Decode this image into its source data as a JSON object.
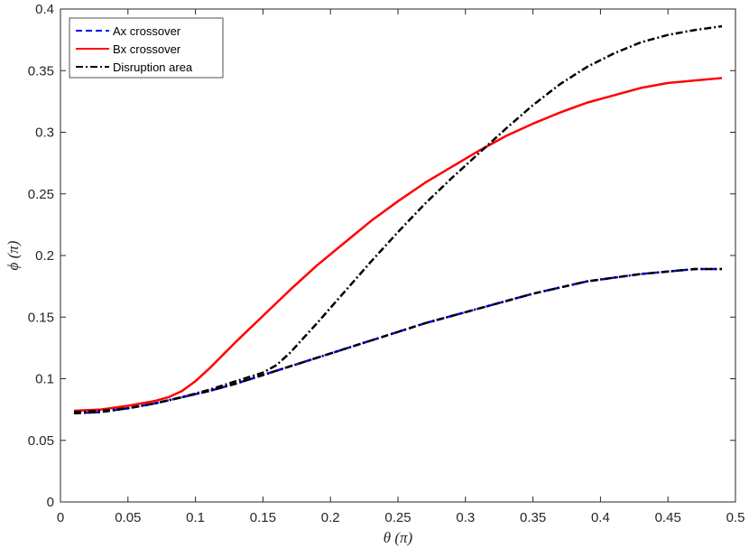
{
  "chart_data": {
    "type": "line",
    "xlabel": "θ (π)",
    "ylabel": "ϕ (π)",
    "xlim": [
      0,
      0.5
    ],
    "ylim": [
      0,
      0.4
    ],
    "xticks": [
      0,
      0.05,
      0.1,
      0.15,
      0.2,
      0.25,
      0.3,
      0.35,
      0.4,
      0.45,
      0.5
    ],
    "yticks": [
      0,
      0.05,
      0.1,
      0.15,
      0.2,
      0.25,
      0.3,
      0.35,
      0.4
    ],
    "xtick_labels": [
      "0",
      "0.05",
      "0.1",
      "0.15",
      "0.2",
      "0.25",
      "0.3",
      "0.35",
      "0.4",
      "0.45",
      "0.5"
    ],
    "ytick_labels": [
      "0",
      "0.05",
      "0.1",
      "0.15",
      "0.2",
      "0.25",
      "0.3",
      "0.35",
      "0.4"
    ],
    "grid": false,
    "legend_position": "top-left",
    "series": [
      {
        "name": "Ax crossover",
        "color": "#0000ff",
        "style": "dashed",
        "x": [
          0.01,
          0.03,
          0.05,
          0.07,
          0.09,
          0.11,
          0.13,
          0.15,
          0.17,
          0.19,
          0.21,
          0.23,
          0.25,
          0.27,
          0.29,
          0.31,
          0.33,
          0.35,
          0.37,
          0.39,
          0.41,
          0.43,
          0.45,
          0.47,
          0.49
        ],
        "y": [
          0.072,
          0.073,
          0.076,
          0.08,
          0.085,
          0.09,
          0.096,
          0.103,
          0.11,
          0.117,
          0.124,
          0.131,
          0.138,
          0.145,
          0.151,
          0.157,
          0.163,
          0.169,
          0.174,
          0.179,
          0.182,
          0.185,
          0.187,
          0.189,
          0.189
        ]
      },
      {
        "name": "Bx crossover",
        "color": "#ff0000",
        "style": "solid",
        "x": [
          0.01,
          0.03,
          0.05,
          0.07,
          0.08,
          0.09,
          0.1,
          0.11,
          0.13,
          0.15,
          0.17,
          0.19,
          0.21,
          0.23,
          0.25,
          0.27,
          0.29,
          0.31,
          0.33,
          0.35,
          0.37,
          0.39,
          0.41,
          0.43,
          0.45,
          0.47,
          0.49
        ],
        "y": [
          0.074,
          0.075,
          0.078,
          0.082,
          0.085,
          0.09,
          0.098,
          0.108,
          0.13,
          0.151,
          0.172,
          0.192,
          0.21,
          0.228,
          0.244,
          0.259,
          0.272,
          0.285,
          0.297,
          0.307,
          0.316,
          0.324,
          0.33,
          0.336,
          0.34,
          0.342,
          0.344
        ]
      },
      {
        "name": "Disruption area",
        "color": "#000000",
        "style": "dashdot",
        "segments": [
          {
            "x": [
              0.01,
              0.03,
              0.05,
              0.07,
              0.09,
              0.11,
              0.13,
              0.15,
              0.17,
              0.19,
              0.21,
              0.23,
              0.25,
              0.27,
              0.29,
              0.31,
              0.33,
              0.35,
              0.37,
              0.39,
              0.41,
              0.43,
              0.45,
              0.47,
              0.49
            ],
            "y": [
              0.072,
              0.073,
              0.076,
              0.08,
              0.085,
              0.09,
              0.096,
              0.103,
              0.11,
              0.117,
              0.124,
              0.131,
              0.138,
              0.145,
              0.151,
              0.157,
              0.163,
              0.169,
              0.174,
              0.179,
              0.182,
              0.185,
              0.187,
              0.189,
              0.189
            ]
          },
          {
            "x": [
              0.01,
              0.03,
              0.05,
              0.07,
              0.09,
              0.11,
              0.13,
              0.15,
              0.16,
              0.17,
              0.19,
              0.21,
              0.23,
              0.25,
              0.27,
              0.29,
              0.31,
              0.33,
              0.35,
              0.37,
              0.39,
              0.41,
              0.43,
              0.45,
              0.47,
              0.49
            ],
            "y": [
              0.073,
              0.074,
              0.076,
              0.08,
              0.085,
              0.091,
              0.098,
              0.105,
              0.111,
              0.121,
              0.145,
              0.17,
              0.195,
              0.219,
              0.242,
              0.263,
              0.283,
              0.303,
              0.322,
              0.339,
              0.353,
              0.364,
              0.373,
              0.379,
              0.383,
              0.386
            ]
          }
        ]
      }
    ]
  }
}
